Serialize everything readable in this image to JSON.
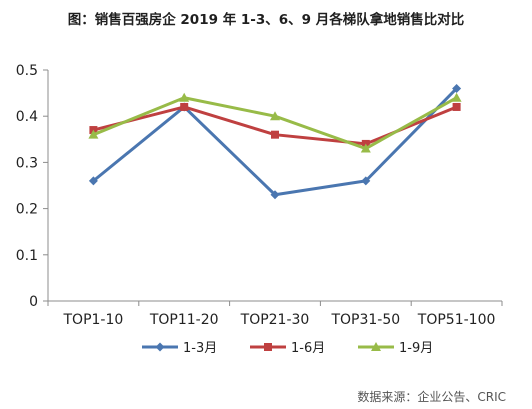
{
  "chart_data": {
    "type": "line",
    "title": "图：销售百强房企 2019 年 1-3、6、9 月各梯队拿地销售比对比",
    "categories": [
      "TOP1-10",
      "TOP11-20",
      "TOP21-30",
      "TOP31-50",
      "TOP51-100"
    ],
    "series": [
      {
        "name": "1-3月",
        "color": "#4a76b0",
        "marker": "diamond",
        "values": [
          0.26,
          0.42,
          0.23,
          0.26,
          0.46
        ]
      },
      {
        "name": "1-6月",
        "color": "#bf4040",
        "marker": "square",
        "values": [
          0.37,
          0.42,
          0.36,
          0.34,
          0.42
        ]
      },
      {
        "name": "1-9月",
        "color": "#98bb48",
        "marker": "triangle",
        "values": [
          0.36,
          0.44,
          0.4,
          0.33,
          0.44
        ]
      }
    ],
    "ylim": [
      0,
      0.5
    ],
    "yticks": [
      "0",
      "0.1",
      "0.2",
      "0.3",
      "0.4",
      "0.5"
    ],
    "grid": false,
    "legend_position": "bottom"
  },
  "source": "数据来源：企业公告、CRIC"
}
